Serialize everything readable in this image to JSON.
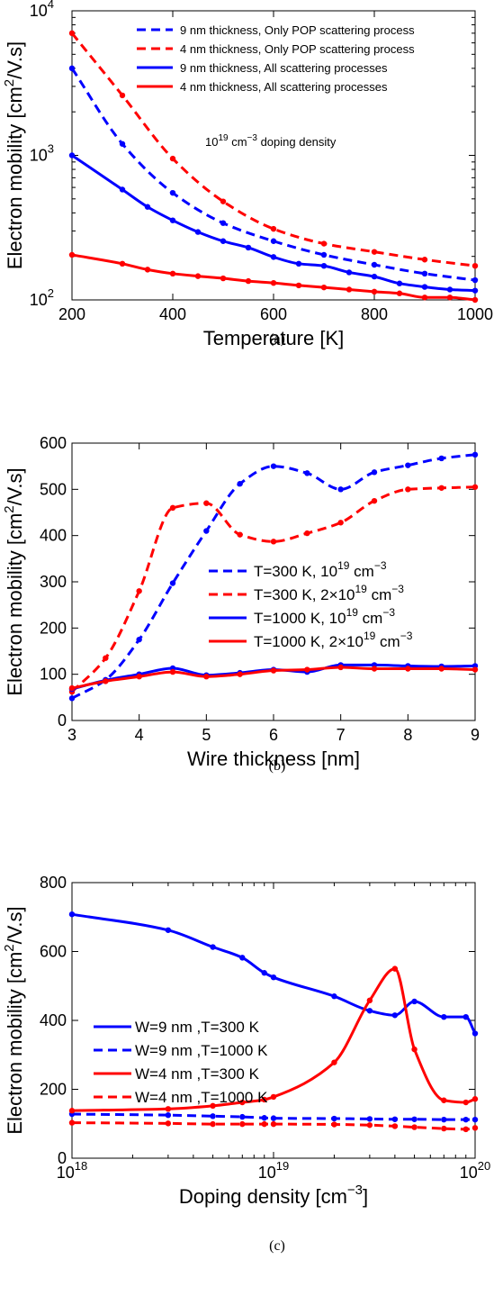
{
  "chart_data": [
    {
      "id": "a",
      "type": "line",
      "caption": "(a)",
      "xlabel": "Temperature [K]",
      "ylabel": "Electron mobility [cm2/V.s]",
      "xlim": [
        200,
        1000
      ],
      "ylim": [
        100,
        10000
      ],
      "yscale": "log",
      "xticks": [
        200,
        400,
        600,
        800,
        1000
      ],
      "xtick_labels": [
        "200",
        "400",
        "600",
        "800",
        "1000"
      ],
      "yticks": [
        100,
        1000,
        10000
      ],
      "ytick_labels": [
        {
          "base": "10",
          "exp": "2"
        },
        {
          "base": "10",
          "exp": "3"
        },
        {
          "base": "10",
          "exp": "4"
        }
      ],
      "legend_position": "top-right",
      "annotation": {
        "pre": "10",
        "sup": "19",
        "post": " cm",
        "sup2": "−3",
        "tail": " doping density"
      },
      "series": [
        {
          "name": "9 nm thickness, Only POP scattering process",
          "color": "#0000ff",
          "dash": true,
          "x": [
            200,
            300,
            400,
            500,
            600,
            700,
            800,
            900,
            1000
          ],
          "y": [
            4000,
            1200,
            550,
            340,
            255,
            205,
            175,
            152,
            137
          ]
        },
        {
          "name": "4 nm thickness, Only POP scattering process",
          "color": "#ff0000",
          "dash": true,
          "x": [
            200,
            300,
            400,
            500,
            600,
            700,
            800,
            900,
            1000
          ],
          "y": [
            7000,
            2600,
            950,
            480,
            310,
            245,
            215,
            190,
            172
          ]
        },
        {
          "name": "9 nm thickness, All scattering processes",
          "color": "#0000ff",
          "dash": false,
          "x": [
            200,
            300,
            350,
            400,
            450,
            500,
            550,
            600,
            650,
            700,
            750,
            800,
            850,
            900,
            950,
            1000
          ],
          "y": [
            1000,
            580,
            440,
            355,
            295,
            255,
            230,
            198,
            178,
            172,
            155,
            145,
            130,
            123,
            118,
            116
          ]
        },
        {
          "name": "4 nm thickness, All scattering processes",
          "color": "#ff0000",
          "dash": false,
          "x": [
            200,
            300,
            350,
            400,
            450,
            500,
            550,
            600,
            650,
            700,
            750,
            800,
            850,
            900,
            950,
            1000
          ],
          "y": [
            205,
            178,
            162,
            152,
            146,
            141,
            135,
            131,
            126,
            122,
            118,
            114,
            111,
            104,
            104,
            100
          ]
        }
      ]
    },
    {
      "id": "b",
      "type": "line",
      "caption": "(b)",
      "xlabel": "Wire thickness [nm]",
      "ylabel": "Electron mobility [cm2/V.s]",
      "xlim": [
        3,
        9
      ],
      "ylim": [
        0,
        600
      ],
      "xticks": [
        3,
        4,
        5,
        6,
        7,
        8,
        9
      ],
      "xtick_labels": [
        "3",
        "4",
        "5",
        "6",
        "7",
        "8",
        "9"
      ],
      "yticks": [
        0,
        100,
        200,
        300,
        400,
        500,
        600
      ],
      "ytick_labels": [
        "0",
        "100",
        "200",
        "300",
        "400",
        "500",
        "600"
      ],
      "legend_position": "center-right",
      "series": [
        {
          "name": "T=300 K, 10^19 cm^-3",
          "label": {
            "pre": "T=300 K, 10",
            "sup": "19",
            "post": " cm",
            "sup2": "−3"
          },
          "color": "#0000ff",
          "dash": true,
          "x": [
            3,
            3.5,
            4,
            4.5,
            5,
            5.5,
            6,
            6.5,
            7,
            7.5,
            8,
            8.5,
            9
          ],
          "y": [
            48,
            88,
            175,
            297,
            410,
            512,
            550,
            535,
            500,
            537,
            552,
            567,
            575
          ]
        },
        {
          "name": "T=300 K, 2×10^19 cm^-3",
          "label": {
            "pre": "T=300 K, 2×10",
            "sup": "19",
            "post": " cm",
            "sup2": "−3"
          },
          "color": "#ff0000",
          "dash": true,
          "x": [
            3,
            3.5,
            4,
            4.5,
            5,
            5.5,
            6,
            6.5,
            7,
            7.5,
            8,
            8.5,
            9
          ],
          "y": [
            62,
            135,
            280,
            460,
            470,
            402,
            387,
            405,
            428,
            475,
            500,
            503,
            505
          ]
        },
        {
          "name": "T=1000 K, 10^19 cm^-3",
          "label": {
            "pre": "T=1000 K, 10",
            "sup": "19",
            "post": " cm",
            "sup2": "−3"
          },
          "color": "#0000ff",
          "dash": false,
          "x": [
            3,
            3.5,
            4,
            4.5,
            5,
            5.5,
            6,
            6.5,
            7,
            7.5,
            8,
            8.5,
            9
          ],
          "y": [
            68,
            87,
            100,
            113,
            98,
            103,
            110,
            105,
            120,
            120,
            118,
            117,
            118
          ]
        },
        {
          "name": "T=1000 K, 2×10^19 cm^-3",
          "label": {
            "pre": "T=1000 K, 2×10",
            "sup": "19",
            "post": " cm",
            "sup2": "−3"
          },
          "color": "#ff0000",
          "dash": false,
          "x": [
            3,
            3.5,
            4,
            4.5,
            5,
            5.5,
            6,
            6.5,
            7,
            7.5,
            8,
            8.5,
            9
          ],
          "y": [
            70,
            85,
            95,
            105,
            95,
            100,
            108,
            110,
            115,
            112,
            112,
            112,
            110
          ]
        }
      ]
    },
    {
      "id": "c",
      "type": "line",
      "caption": "(c)",
      "xlabel": "Doping density [cm−3]",
      "ylabel": "Electron mobility [cm2/V.s]",
      "xlim": [
        1e+18,
        1e+20
      ],
      "ylim": [
        0,
        800
      ],
      "xscale": "log",
      "xticks": [
        1e+18,
        1e+19,
        1e+20
      ],
      "xtick_labels": [
        {
          "base": "10",
          "exp": "18"
        },
        {
          "base": "10",
          "exp": "19"
        },
        {
          "base": "10",
          "exp": "20"
        }
      ],
      "yticks": [
        0,
        200,
        400,
        600,
        800
      ],
      "ytick_labels": [
        "0",
        "200",
        "400",
        "600",
        "800"
      ],
      "legend_position": "center-left",
      "series": [
        {
          "name": "W=9 nm ,T=300 K",
          "color": "#0000ff",
          "dash": false,
          "x": [
            1e+18,
            3e+18,
            5e+18,
            7e+18,
            9e+18,
            1e+19,
            2e+19,
            3e+19,
            4e+19,
            5e+19,
            7e+19,
            9e+19,
            1e+20
          ],
          "y": [
            708,
            662,
            613,
            582,
            538,
            525,
            470,
            428,
            415,
            455,
            410,
            410,
            362
          ]
        },
        {
          "name": "W=9 nm ,T=1000 K",
          "color": "#0000ff",
          "dash": true,
          "x": [
            1e+18,
            3e+18,
            5e+18,
            7e+18,
            9e+18,
            1e+19,
            2e+19,
            3e+19,
            4e+19,
            5e+19,
            7e+19,
            9e+19,
            1e+20
          ],
          "y": [
            128,
            125,
            122,
            120,
            117,
            116,
            115,
            114,
            113,
            113,
            112,
            112,
            112
          ]
        },
        {
          "name": "W=4 nm ,T=300 K",
          "color": "#ff0000",
          "dash": false,
          "x": [
            1e+18,
            3e+18,
            5e+18,
            7e+18,
            9e+18,
            1e+19,
            2e+19,
            3e+19,
            4e+19,
            5e+19,
            7e+19,
            9e+19,
            1e+20
          ],
          "y": [
            138,
            143,
            152,
            162,
            170,
            178,
            278,
            458,
            550,
            316,
            168,
            162,
            172
          ]
        },
        {
          "name": "W=4 nm ,T=1000 K",
          "color": "#ff0000",
          "dash": true,
          "x": [
            1e+18,
            3e+18,
            5e+18,
            7e+18,
            9e+18,
            1e+19,
            2e+19,
            3e+19,
            4e+19,
            5e+19,
            7e+19,
            9e+19,
            1e+20
          ],
          "y": [
            103,
            101,
            99,
            99,
            99,
            99,
            98,
            96,
            93,
            90,
            86,
            84,
            88
          ]
        }
      ]
    }
  ]
}
